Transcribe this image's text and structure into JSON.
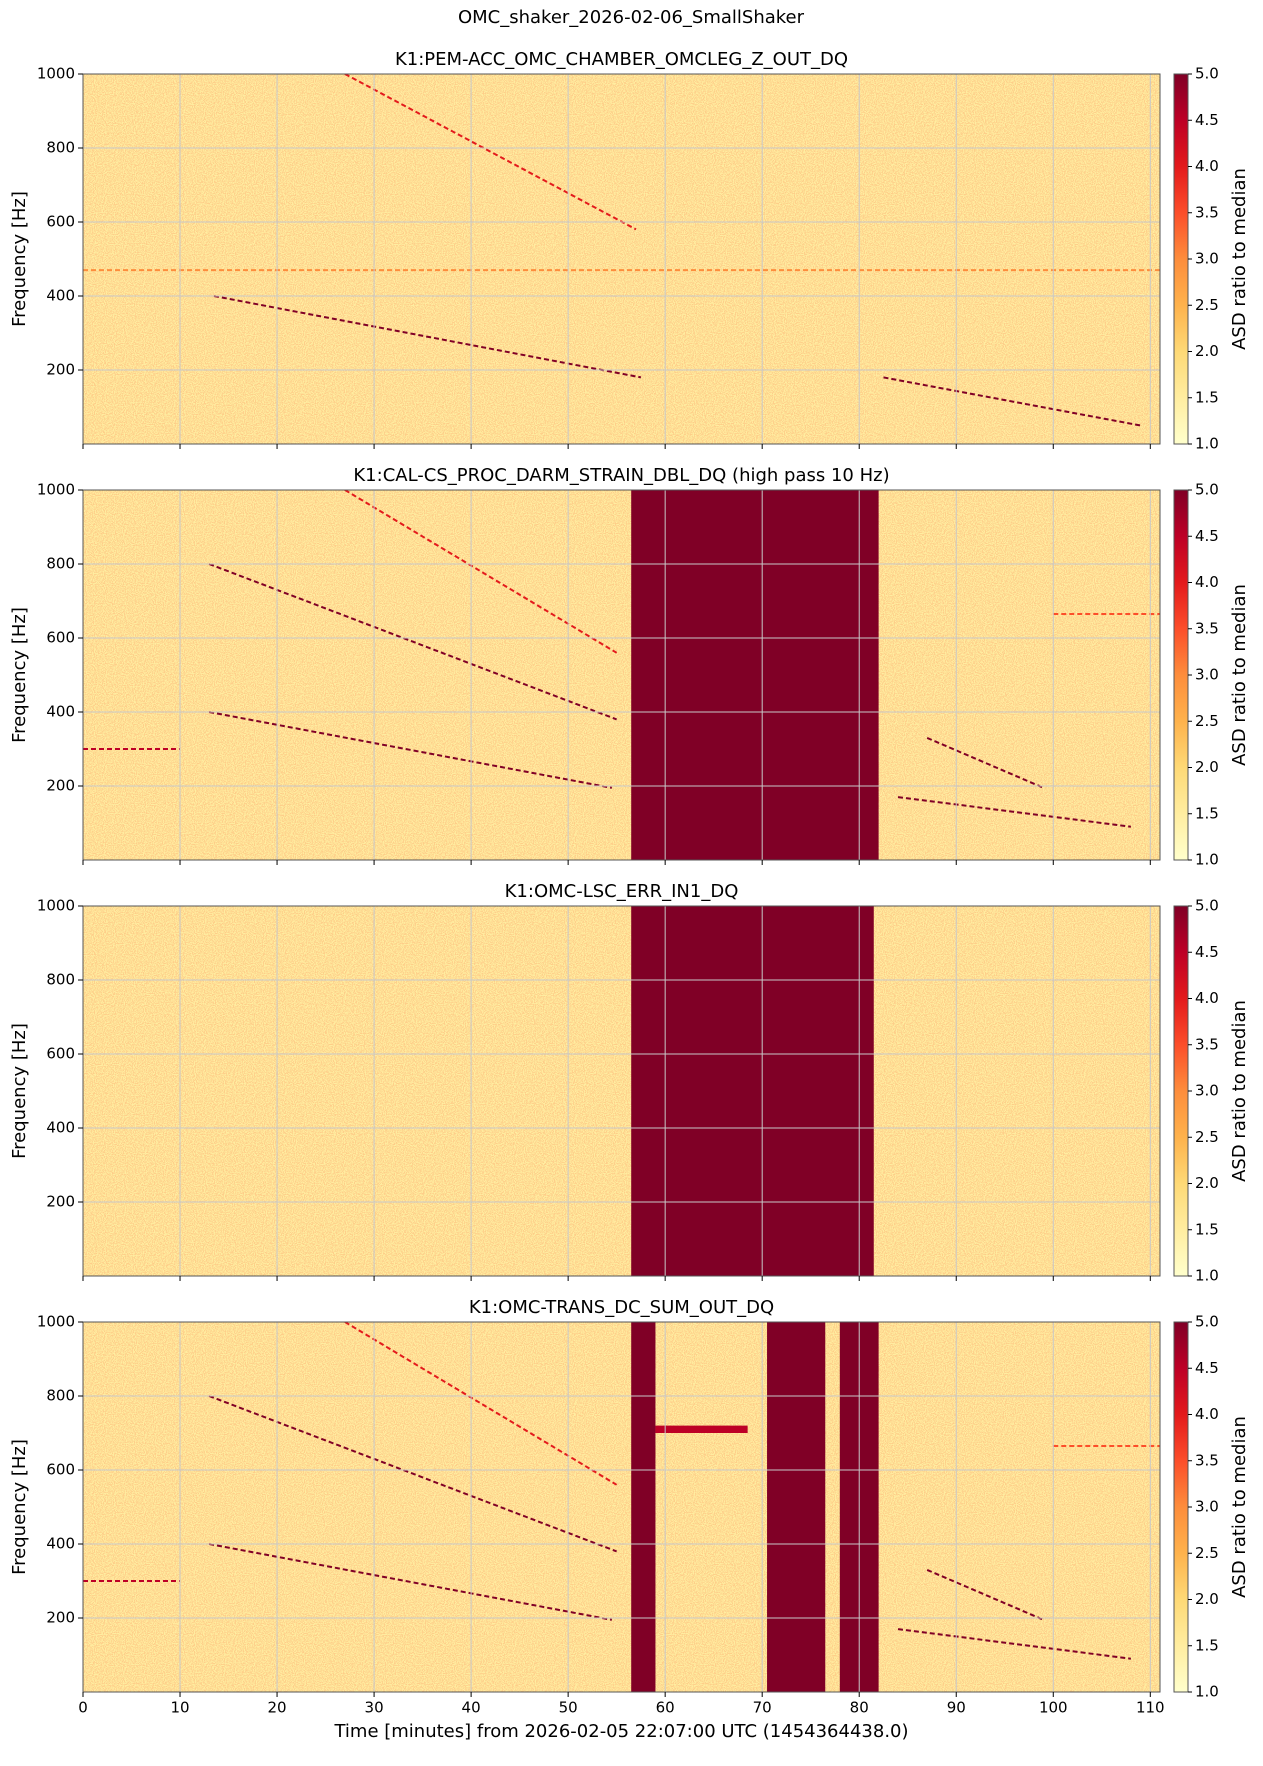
{
  "title": "OMC_shaker_2026-02-06_SmallShaker",
  "chart_data": [
    {
      "type": "heatmap",
      "title": "K1:PEM-ACC_OMC_CHAMBER_OMCLEG_Z_OUT_DQ",
      "ylabel": "Frequency [Hz]",
      "xlim": [
        0,
        111
      ],
      "ylim": [
        0,
        1000
      ],
      "xticks": [
        0,
        10,
        20,
        30,
        40,
        50,
        60,
        70,
        80,
        90,
        100,
        110
      ],
      "yticks": [
        200,
        400,
        600,
        800,
        1000
      ],
      "grid": true,
      "rects": [],
      "lines": [
        {
          "x": [
            13.5,
            57.5
          ],
          "y": [
            400,
            180
          ],
          "color": "#800026"
        },
        {
          "x": [
            27,
            57
          ],
          "y": [
            1000,
            580
          ],
          "color": "#e31a1c"
        },
        {
          "x": [
            82.5,
            109
          ],
          "y": [
            180,
            50
          ],
          "color": "#800026"
        },
        {
          "x": [
            0,
            111
          ],
          "y": [
            470,
            470
          ],
          "color": "#fd8d3c"
        }
      ],
      "colorbar": {
        "label": "ASD ratio to median",
        "lim": [
          1,
          5
        ],
        "ticks": [
          {
            "value": 1,
            "label": "1.0"
          },
          1.5,
          {
            "value": 2,
            "label": "2.0"
          },
          2.5,
          {
            "value": 3,
            "label": "3.0"
          },
          3.5,
          {
            "value": 4,
            "label": "4.0"
          },
          4.5,
          {
            "value": 5,
            "label": "5.0"
          }
        ],
        "colors": [
          "#ffffcc",
          "#ffeda0",
          "#fed976",
          "#feb24c",
          "#fd8d3c",
          "#fc4e2a",
          "#e31a1c",
          "#bd0026",
          "#800026"
        ]
      }
    },
    {
      "type": "heatmap",
      "title": "K1:CAL-CS_PROC_DARM_STRAIN_DBL_DQ (high pass 10 Hz)",
      "ylabel": "Frequency [Hz]",
      "xlim": [
        0,
        111
      ],
      "ylim": [
        0,
        1000
      ],
      "xticks": [
        0,
        10,
        20,
        30,
        40,
        50,
        60,
        70,
        80,
        90,
        100,
        110
      ],
      "yticks": [
        200,
        400,
        600,
        800,
        1000
      ],
      "grid": true,
      "rects": [
        {
          "x": [
            56.5,
            82
          ],
          "y": [
            0,
            1000
          ],
          "color": "#800026"
        }
      ],
      "lines": [
        {
          "x": [
            13,
            55
          ],
          "y": [
            800,
            380
          ],
          "color": "#800026"
        },
        {
          "x": [
            13,
            54.5
          ],
          "y": [
            400,
            195
          ],
          "color": "#800026"
        },
        {
          "x": [
            27,
            55
          ],
          "y": [
            1000,
            560
          ],
          "color": "#e31a1c"
        },
        {
          "x": [
            0,
            10
          ],
          "y": [
            300,
            300
          ],
          "color": "#bd0026"
        },
        {
          "x": [
            87,
            99
          ],
          "y": [
            330,
            195
          ],
          "color": "#800026"
        },
        {
          "x": [
            84,
            108
          ],
          "y": [
            170,
            90
          ],
          "color": "#800026"
        },
        {
          "x": [
            100,
            111
          ],
          "y": [
            665,
            665
          ],
          "color": "#fc4e2a"
        }
      ],
      "colorbar": {
        "label": "ASD ratio to median",
        "lim": [
          1,
          5
        ],
        "ticks": [
          {
            "value": 1,
            "label": "1.0"
          },
          1.5,
          {
            "value": 2,
            "label": "2.0"
          },
          2.5,
          {
            "value": 3,
            "label": "3.0"
          },
          3.5,
          {
            "value": 4,
            "label": "4.0"
          },
          4.5,
          {
            "value": 5,
            "label": "5.0"
          }
        ],
        "colors": [
          "#ffffcc",
          "#ffeda0",
          "#fed976",
          "#feb24c",
          "#fd8d3c",
          "#fc4e2a",
          "#e31a1c",
          "#bd0026",
          "#800026"
        ]
      }
    },
    {
      "type": "heatmap",
      "title": "K1:OMC-LSC_ERR_IN1_DQ",
      "ylabel": "Frequency [Hz]",
      "xlim": [
        0,
        111
      ],
      "ylim": [
        0,
        1000
      ],
      "xticks": [
        0,
        10,
        20,
        30,
        40,
        50,
        60,
        70,
        80,
        90,
        100,
        110
      ],
      "yticks": [
        200,
        400,
        600,
        800,
        1000
      ],
      "grid": true,
      "rects": [
        {
          "x": [
            56.5,
            81.5
          ],
          "y": [
            0,
            1000
          ],
          "color": "#800026"
        }
      ],
      "lines": [],
      "colorbar": {
        "label": "ASD ratio to median",
        "lim": [
          1,
          5
        ],
        "ticks": [
          {
            "value": 1,
            "label": "1.0"
          },
          1.5,
          {
            "value": 2,
            "label": "2.0"
          },
          2.5,
          {
            "value": 3,
            "label": "3.0"
          },
          3.5,
          {
            "value": 4,
            "label": "4.0"
          },
          4.5,
          {
            "value": 5,
            "label": "5.0"
          }
        ],
        "colors": [
          "#ffffcc",
          "#ffeda0",
          "#fed976",
          "#feb24c",
          "#fd8d3c",
          "#fc4e2a",
          "#e31a1c",
          "#bd0026",
          "#800026"
        ]
      }
    },
    {
      "type": "heatmap",
      "title": "K1:OMC-TRANS_DC_SUM_OUT_DQ",
      "ylabel": "Frequency [Hz]",
      "xlabel": "Time [minutes] from 2026-02-05 22:07:00 UTC (1454364438.0)",
      "xlim": [
        0,
        111
      ],
      "ylim": [
        0,
        1000
      ],
      "xticks": [
        0,
        10,
        20,
        30,
        40,
        50,
        60,
        70,
        80,
        90,
        100,
        110
      ],
      "yticks": [
        200,
        400,
        600,
        800,
        1000
      ],
      "grid": true,
      "rects": [
        {
          "x": [
            56.5,
            59
          ],
          "y": [
            0,
            1000
          ],
          "color": "#800026"
        },
        {
          "x": [
            59,
            68.5
          ],
          "y": [
            700,
            720
          ],
          "color": "#bd0026"
        },
        {
          "x": [
            70.5,
            76.5
          ],
          "y": [
            0,
            1000
          ],
          "color": "#800026"
        },
        {
          "x": [
            78,
            82
          ],
          "y": [
            0,
            1000
          ],
          "color": "#800026"
        }
      ],
      "lines": [
        {
          "x": [
            13,
            55
          ],
          "y": [
            800,
            380
          ],
          "color": "#800026"
        },
        {
          "x": [
            13,
            54.5
          ],
          "y": [
            400,
            195
          ],
          "color": "#800026"
        },
        {
          "x": [
            27,
            55
          ],
          "y": [
            1000,
            560
          ],
          "color": "#e31a1c"
        },
        {
          "x": [
            0,
            10
          ],
          "y": [
            300,
            300
          ],
          "color": "#bd0026"
        },
        {
          "x": [
            87,
            99
          ],
          "y": [
            330,
            195
          ],
          "color": "#800026"
        },
        {
          "x": [
            84,
            108
          ],
          "y": [
            170,
            90
          ],
          "color": "#800026"
        },
        {
          "x": [
            100,
            111
          ],
          "y": [
            665,
            665
          ],
          "color": "#fc4e2a"
        }
      ],
      "colorbar": {
        "label": "ASD ratio to median",
        "lim": [
          1,
          5
        ],
        "ticks": [
          {
            "value": 1,
            "label": "1.0"
          },
          1.5,
          {
            "value": 2,
            "label": "2.0"
          },
          2.5,
          {
            "value": 3,
            "label": "3.0"
          },
          3.5,
          {
            "value": 4,
            "label": "4.0"
          },
          4.5,
          {
            "value": 5,
            "label": "5.0"
          }
        ],
        "colors": [
          "#ffffcc",
          "#ffeda0",
          "#fed976",
          "#feb24c",
          "#fd8d3c",
          "#fc4e2a",
          "#e31a1c",
          "#bd0026",
          "#800026"
        ]
      }
    }
  ]
}
